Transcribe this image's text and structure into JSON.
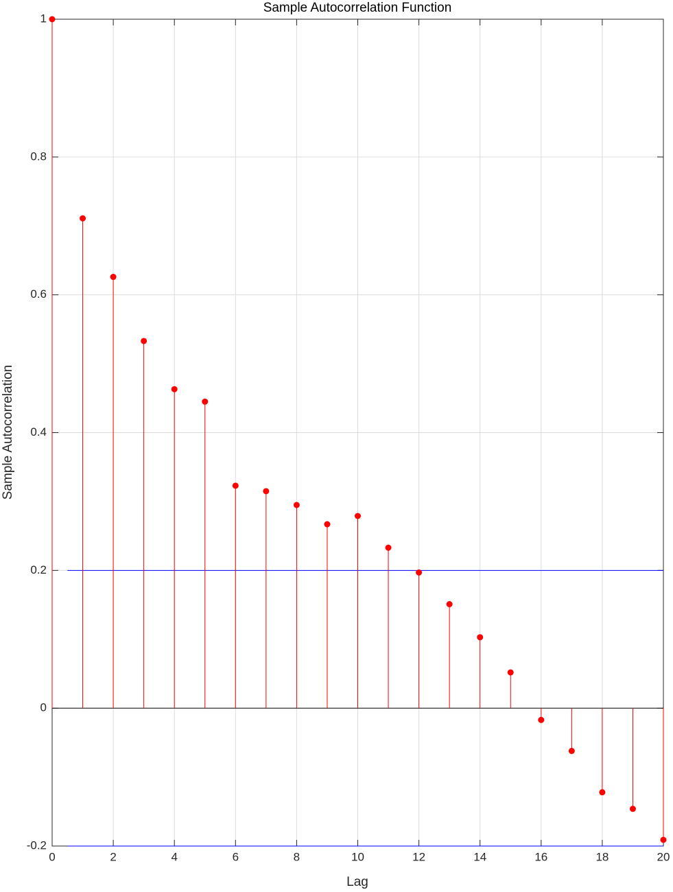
{
  "chart_data": {
    "type": "stem",
    "title": "Sample Autocorrelation Function",
    "x_label": "Lag",
    "y_label": "Sample Autocorrelation",
    "x": [
      0,
      1,
      2,
      3,
      4,
      5,
      6,
      7,
      8,
      9,
      10,
      11,
      12,
      13,
      14,
      15,
      16,
      17,
      18,
      19,
      20
    ],
    "values": [
      1,
      0.711,
      0.626,
      0.533,
      0.463,
      0.445,
      0.323,
      0.315,
      0.295,
      0.267,
      0.279,
      0.233,
      0.197,
      0.151,
      0.103,
      0.052,
      -0.017,
      -0.062,
      -0.122,
      -0.146,
      -0.191
    ],
    "color": "#ff0000",
    "bounds": [
      0.2,
      -0.2
    ],
    "bounds_x": [
      0.5,
      20
    ],
    "bounds_color": "#0000ff",
    "xlim": [
      0,
      20
    ],
    "xticks": [
      0,
      2,
      4,
      6,
      8,
      10,
      12,
      14,
      16,
      18,
      20
    ],
    "ylim": [
      -0.2,
      1
    ],
    "yticks": [
      -0.2,
      0,
      0.2,
      0.4,
      0.6,
      0.8,
      1
    ],
    "grid": true
  }
}
